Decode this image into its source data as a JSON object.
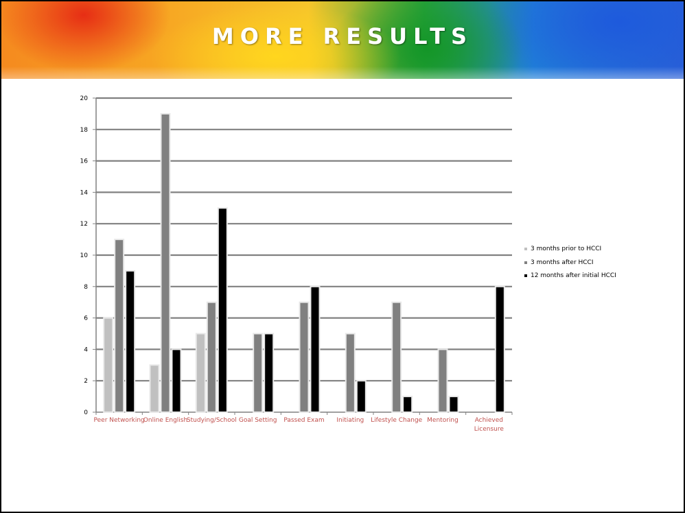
{
  "slide": {
    "title": "MORE RESULTS"
  },
  "chart_data": {
    "type": "bar",
    "title": "",
    "xlabel": "",
    "ylabel": "",
    "ylim": [
      0,
      20
    ],
    "yticks": [
      "0",
      "2",
      "4",
      "6",
      "8",
      "10",
      "12",
      "14",
      "16",
      "18",
      "20"
    ],
    "grid": true,
    "legend_position": "right",
    "categories": [
      "Peer Networking",
      "Online English",
      "Studying/School",
      "Goal Setting",
      "Passed Exam",
      "Initiating",
      "Lifestyle Change",
      "Mentoring",
      "Achieved Licensure"
    ],
    "series": [
      {
        "name": "3 months prior to HCCI",
        "color": "#c0c0c0",
        "values": [
          6,
          3,
          5,
          0,
          0,
          0,
          0,
          0,
          0
        ]
      },
      {
        "name": "3 months after HCCI",
        "color": "#808080",
        "values": [
          11,
          19,
          7,
          5,
          7,
          5,
          7,
          4,
          0
        ]
      },
      {
        "name": "12 months after initial HCCI",
        "color": "#000000",
        "values": [
          9,
          4,
          13,
          5,
          8,
          2,
          1,
          1,
          8
        ]
      }
    ],
    "colors": {
      "category_label": "#c0504d",
      "gridline": "#808080",
      "bar_outline": "#e8e8e8"
    }
  }
}
